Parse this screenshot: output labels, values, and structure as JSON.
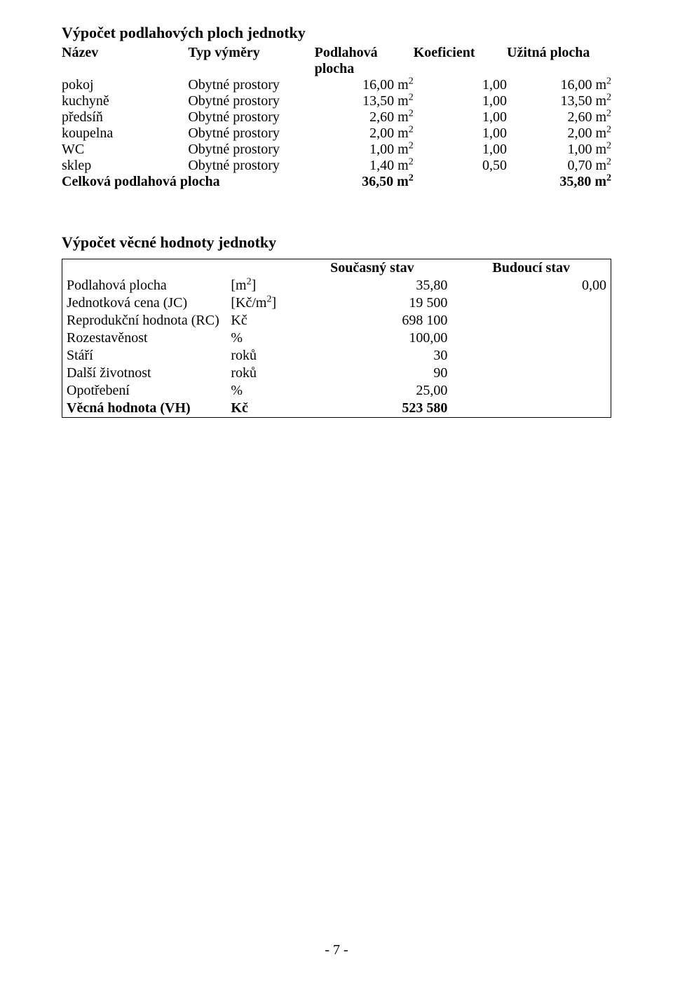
{
  "section1": {
    "title": "Výpočet podlahových ploch jednotky",
    "headers": {
      "name": "Název",
      "type": "Typ výměry",
      "floor_line1": "Podlahová",
      "floor_line2": "plocha",
      "coef": "Koeficient",
      "usable": "Užitná plocha"
    },
    "rows": [
      {
        "name": "pokoj",
        "type": "Obytné prostory",
        "floor": "16,00 m",
        "coef": "1,00",
        "usable": "16,00 m"
      },
      {
        "name": "kuchyně",
        "type": "Obytné prostory",
        "floor": "13,50 m",
        "coef": "1,00",
        "usable": "13,50 m"
      },
      {
        "name": "předsíň",
        "type": "Obytné prostory",
        "floor": "2,60 m",
        "coef": "1,00",
        "usable": "2,60 m"
      },
      {
        "name": "koupelna",
        "type": "Obytné prostory",
        "floor": "2,00 m",
        "coef": "1,00",
        "usable": "2,00 m"
      },
      {
        "name": "WC",
        "type": "Obytné prostory",
        "floor": "1,00 m",
        "coef": "1,00",
        "usable": "1,00 m"
      },
      {
        "name": "sklep",
        "type": "Obytné prostory",
        "floor": "1,40 m",
        "coef": "0,50",
        "usable": "0,70 m"
      }
    ],
    "total": {
      "label": "Celková podlahová plocha",
      "floor": "36,50 m",
      "usable": "35,80 m"
    }
  },
  "section2": {
    "title": "Výpočet věcné hodnoty jednotky",
    "headers": {
      "current": "Současný stav",
      "future": "Budoucí stav"
    },
    "rows": [
      {
        "label": "Podlahová plocha",
        "unit": "[m2]",
        "unit_has_sup": true,
        "current": "35,80",
        "future": "0,00",
        "bold": false
      },
      {
        "label": "Jednotková cena (JC)",
        "unit": "[Kč/m2]",
        "unit_has_sup": true,
        "current": "19 500",
        "future": "",
        "bold": false
      },
      {
        "label": "Reprodukční hodnota (RC)",
        "unit": "Kč",
        "unit_has_sup": false,
        "current": "698 100",
        "future": "",
        "bold": false
      },
      {
        "label": "Rozestavěnost",
        "unit": "%",
        "unit_has_sup": false,
        "current": "100,00",
        "future": "",
        "bold": false
      },
      {
        "label": "Stáří",
        "unit": "roků",
        "unit_has_sup": false,
        "current": "30",
        "future": "",
        "bold": false
      },
      {
        "label": "Další životnost",
        "unit": "roků",
        "unit_has_sup": false,
        "current": "90",
        "future": "",
        "bold": false
      },
      {
        "label": "Opotřebení",
        "unit": "%",
        "unit_has_sup": false,
        "current": "25,00",
        "future": "",
        "bold": false
      },
      {
        "label": "Věcná hodnota (VH)",
        "unit": "Kč",
        "unit_has_sup": false,
        "current": "523 580",
        "future": "",
        "bold": true
      }
    ]
  },
  "footer": "- 7 -"
}
